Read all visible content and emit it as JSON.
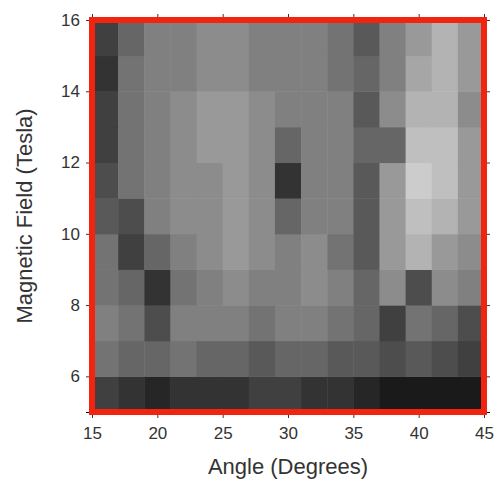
{
  "chart_data": {
    "type": "heatmap",
    "x_label": "Angle (Degrees)",
    "y_label": "Magnetic Field (Tesla)",
    "x": [
      15,
      17,
      19,
      21,
      23,
      25,
      27,
      29,
      31,
      33,
      35,
      37,
      39,
      41,
      43,
      45
    ],
    "y": [
      5,
      6,
      7,
      8,
      9,
      10,
      11,
      12,
      13,
      14,
      15,
      16
    ],
    "values": [
      [
        0.25,
        0.2,
        0.15,
        0.2,
        0.2,
        0.2,
        0.25,
        0.25,
        0.2,
        0.2,
        0.15,
        0.1,
        0.1,
        0.1,
        0.1
      ],
      [
        0.45,
        0.4,
        0.4,
        0.45,
        0.4,
        0.4,
        0.35,
        0.4,
        0.4,
        0.35,
        0.35,
        0.3,
        0.35,
        0.3,
        0.25
      ],
      [
        0.5,
        0.45,
        0.3,
        0.5,
        0.5,
        0.5,
        0.45,
        0.5,
        0.5,
        0.45,
        0.4,
        0.25,
        0.45,
        0.4,
        0.3
      ],
      [
        0.45,
        0.4,
        0.2,
        0.45,
        0.5,
        0.55,
        0.5,
        0.5,
        0.55,
        0.5,
        0.4,
        0.55,
        0.3,
        0.55,
        0.5
      ],
      [
        0.45,
        0.25,
        0.4,
        0.5,
        0.55,
        0.6,
        0.55,
        0.5,
        0.55,
        0.45,
        0.35,
        0.6,
        0.7,
        0.6,
        0.55
      ],
      [
        0.35,
        0.3,
        0.5,
        0.55,
        0.55,
        0.6,
        0.55,
        0.4,
        0.5,
        0.5,
        0.35,
        0.6,
        0.75,
        0.7,
        0.6
      ],
      [
        0.3,
        0.45,
        0.5,
        0.55,
        0.55,
        0.6,
        0.55,
        0.2,
        0.5,
        0.5,
        0.35,
        0.6,
        0.8,
        0.75,
        0.6
      ],
      [
        0.25,
        0.45,
        0.5,
        0.55,
        0.6,
        0.6,
        0.55,
        0.4,
        0.5,
        0.5,
        0.4,
        0.4,
        0.75,
        0.75,
        0.6
      ],
      [
        0.25,
        0.45,
        0.5,
        0.55,
        0.6,
        0.6,
        0.55,
        0.5,
        0.5,
        0.5,
        0.35,
        0.55,
        0.7,
        0.7,
        0.55
      ],
      [
        0.2,
        0.45,
        0.5,
        0.5,
        0.55,
        0.55,
        0.5,
        0.5,
        0.5,
        0.45,
        0.4,
        0.5,
        0.65,
        0.7,
        0.6
      ],
      [
        0.25,
        0.4,
        0.5,
        0.5,
        0.55,
        0.55,
        0.5,
        0.5,
        0.5,
        0.45,
        0.35,
        0.5,
        0.6,
        0.7,
        0.6
      ]
    ],
    "zlim": [
      0,
      1
    ],
    "xlim": [
      15,
      45
    ],
    "xticks": [
      15,
      20,
      25,
      30,
      35,
      40,
      45
    ],
    "ylim": [
      5,
      16
    ],
    "yticks": [
      6,
      8,
      10,
      12,
      14,
      16
    ],
    "color": "#f2230f"
  }
}
